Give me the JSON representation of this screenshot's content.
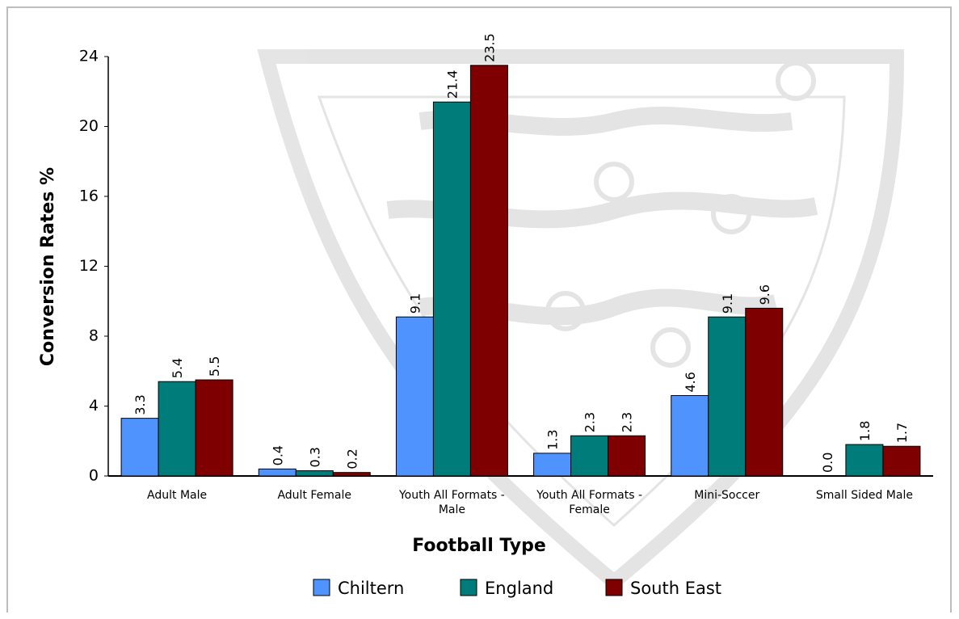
{
  "chart_data": {
    "type": "bar",
    "categories": [
      "Adult Male",
      "Adult Female",
      "Youth All Formats - Male",
      "Youth All Formats - Female",
      "Mini-Soccer",
      "Small Sided Male"
    ],
    "category_lines": [
      [
        "Adult Male"
      ],
      [
        "Adult Female"
      ],
      [
        "Youth All Formats -",
        "Male"
      ],
      [
        "Youth All Formats -",
        "Female"
      ],
      [
        "Mini-Soccer"
      ],
      [
        "Small Sided Male"
      ]
    ],
    "series": [
      {
        "name": "Chiltern",
        "color": "#4f94fe",
        "values": [
          3.3,
          0.4,
          9.1,
          1.3,
          4.6,
          0.0
        ],
        "labels": [
          "3.3",
          "0.4",
          "9.1",
          "1.3",
          "4.6",
          "0.0"
        ]
      },
      {
        "name": "England",
        "color": "#007c7a",
        "values": [
          5.4,
          0.3,
          21.4,
          2.3,
          9.1,
          1.8
        ],
        "labels": [
          "5.4",
          "0.3",
          "21.4",
          "2.3",
          "9.1",
          "1.8"
        ]
      },
      {
        "name": "South East",
        "color": "#7f0000",
        "values": [
          5.5,
          0.2,
          23.5,
          2.3,
          9.6,
          1.7
        ],
        "labels": [
          "5.5",
          "0.2",
          "23.5",
          "2.3",
          "9.6",
          "1.7"
        ]
      }
    ],
    "title": "",
    "xlabel": "Football Type",
    "ylabel": "Conversion Rates %",
    "ylim": [
      0,
      24
    ],
    "yticks": [
      0,
      4,
      8,
      12,
      16,
      20,
      24
    ],
    "grid": false,
    "legend_position": "bottom",
    "background_watermark": "crest-watermark"
  }
}
